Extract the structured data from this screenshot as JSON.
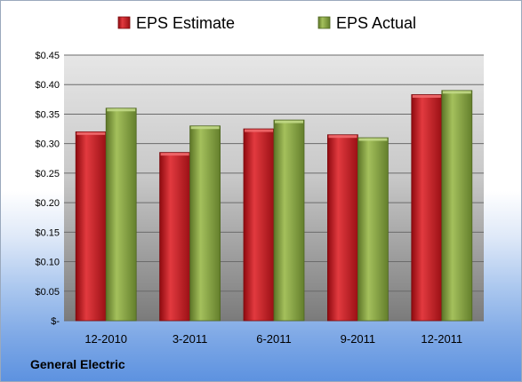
{
  "company": "General Electric",
  "chart_data": {
    "type": "bar",
    "categories": [
      "12-2010",
      "3-2011",
      "6-2011",
      "9-2011",
      "12-2011"
    ],
    "series": [
      {
        "name": "EPS Estimate",
        "color": "#c0151b",
        "values": [
          0.32,
          0.285,
          0.325,
          0.315,
          0.383
        ]
      },
      {
        "name": "EPS Actual",
        "color": "#7f9d3c",
        "values": [
          0.36,
          0.33,
          0.34,
          0.31,
          0.39
        ]
      }
    ],
    "y_ticks": [
      {
        "value": 0,
        "label": "$-"
      },
      {
        "value": 0.05,
        "label": "$0.05"
      },
      {
        "value": 0.1,
        "label": "$0.10"
      },
      {
        "value": 0.15,
        "label": "$0.15"
      },
      {
        "value": 0.2,
        "label": "$0.20"
      },
      {
        "value": 0.25,
        "label": "$0.25"
      },
      {
        "value": 0.3,
        "label": "$0.30"
      },
      {
        "value": 0.35,
        "label": "$0.35"
      },
      {
        "value": 0.4,
        "label": "$0.40"
      },
      {
        "value": 0.45,
        "label": "$0.45"
      }
    ],
    "ylim": [
      0,
      0.45
    ],
    "grid": true,
    "legend_position": "top"
  }
}
